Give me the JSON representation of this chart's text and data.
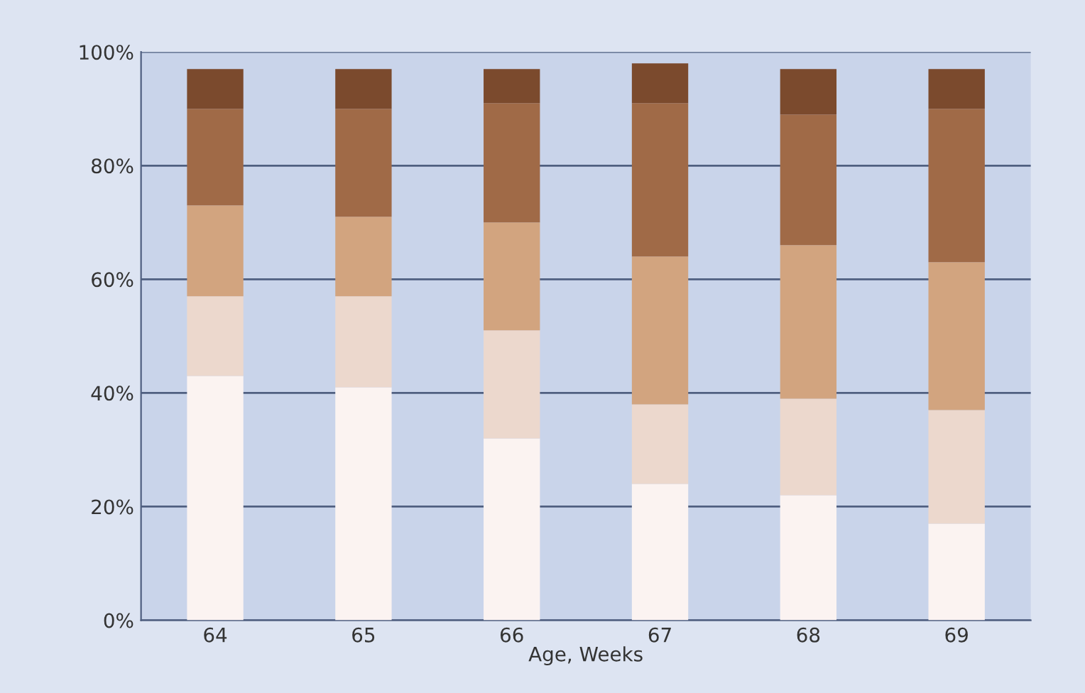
{
  "chart_data": {
    "type": "bar",
    "stacked": true,
    "xlabel": "Age, Weeks",
    "categories": [
      "64",
      "65",
      "66",
      "67",
      "68",
      "69"
    ],
    "series": [
      {
        "color": "#fbf3f1",
        "values": [
          43,
          41,
          32,
          24,
          22,
          17
        ]
      },
      {
        "color": "#ecd8cd",
        "values": [
          14,
          16,
          19,
          14,
          17,
          20
        ]
      },
      {
        "color": "#d2a47f",
        "values": [
          16,
          14,
          19,
          26,
          27,
          26
        ]
      },
      {
        "color": "#a06a47",
        "values": [
          17,
          19,
          21,
          27,
          23,
          27
        ]
      },
      {
        "color": "#7b4a2d",
        "values": [
          7,
          7,
          6,
          7,
          8,
          7
        ]
      }
    ],
    "ylim": [
      0,
      100
    ],
    "yticks": [
      {
        "value": 0,
        "label": "0%"
      },
      {
        "value": 20,
        "label": "20%"
      },
      {
        "value": 40,
        "label": "40%"
      },
      {
        "value": 60,
        "label": "60%"
      },
      {
        "value": 80,
        "label": "80%"
      },
      {
        "value": 100,
        "label": "100%"
      }
    ],
    "grid": "y"
  }
}
